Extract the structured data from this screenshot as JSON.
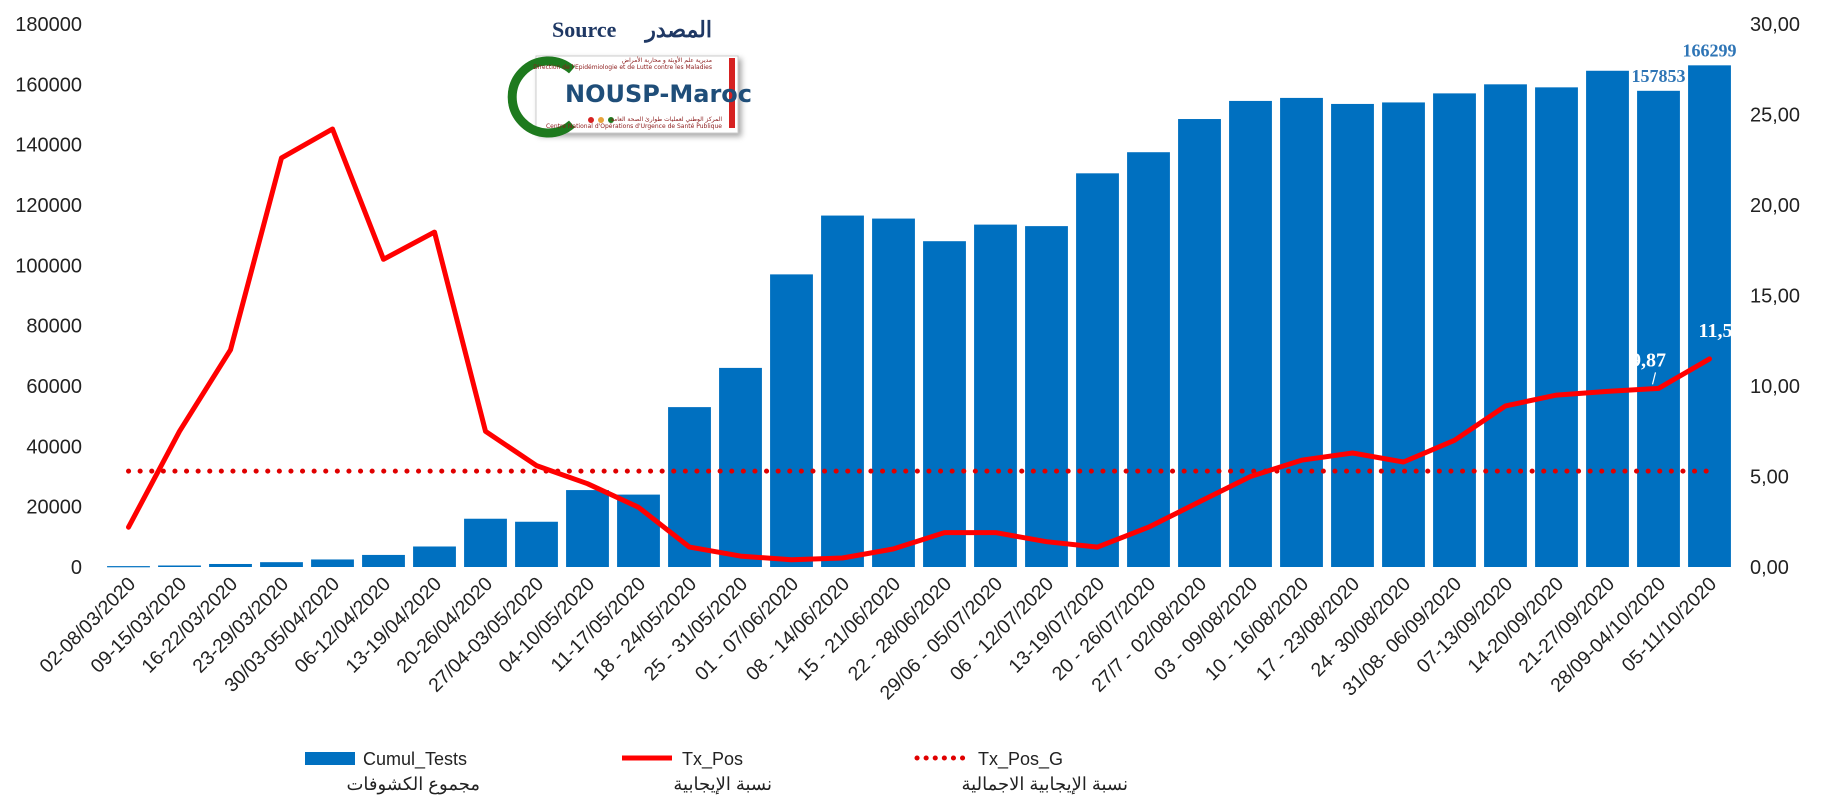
{
  "source": {
    "label_en": "Source",
    "label_ar": "المصدر"
  },
  "logo": {
    "name": "NOUSP-Maroc",
    "line_ar_top": "مديرية علم الأوبئة و محاربة الأمراض",
    "line_fr_top": "Direction de l'Epidémiologie et de Lutte contre les Maladies",
    "line_ar_bottom": "المركز الوطني لعمليات طوارئ الصحة العامة",
    "line_fr_bottom": "Centre National d'Opérations d'Urgence de Santé Publique",
    "colors": {
      "green": "#1e7a1e",
      "red": "#d62222",
      "blue": "#1f4e79"
    }
  },
  "colors": {
    "bars": "#0070c0",
    "line": "#ff0000",
    "dotted": "#e00000"
  },
  "chart_data": {
    "type": "bar+line",
    "categories": [
      "02-08/03/2020",
      "09-15/03/2020",
      "16-22/03/2020",
      "23-29/03/2020",
      "30/03-05/04/2020",
      "06-12/04/2020",
      "13-19/04/2020",
      "20-26/04/2020",
      "27/04-03/05/2020",
      "04-10/05/2020",
      "11-17/05/2020",
      "18 - 24/05/2020",
      "25 - 31/05/2020",
      "01 - 07/06/2020",
      "08 - 14/06/2020",
      "15 - 21/06/2020",
      "22 - 28/06/2020",
      "29/06 - 05/07/2020",
      "06 - 12/07/2020",
      "13-19/07/2020",
      "20 - 26/07/2020",
      "27/7 - 02/08/2020",
      "03 - 09/08/2020",
      "10 - 16/08/2020",
      "17 - 23/08/2020",
      "24- 30/08/2020",
      "31/08- 06/09/2020",
      "07-13/09/2020",
      "14-20/09/2020",
      "21-27/09/2020",
      "28/09-04/10/2020",
      "05-11/10/2020"
    ],
    "series": [
      {
        "name": "Cumul_Tests",
        "name_ar": "مجموع الكشوفات",
        "axis": "left",
        "values": [
          300,
          500,
          1000,
          1600,
          2500,
          4000,
          6800,
          16000,
          15000,
          25500,
          24000,
          53000,
          66000,
          97000,
          116500,
          115500,
          108000,
          113500,
          113000,
          130500,
          137500,
          148500,
          154500,
          155500,
          153500,
          154000,
          157000,
          160000,
          159000,
          164500,
          157853,
          166299
        ]
      },
      {
        "name": "Tx_Pos",
        "name_ar": "نسبة الإيجابية",
        "axis": "right",
        "values": [
          2.2,
          7.5,
          12.0,
          22.6,
          24.2,
          17.0,
          18.5,
          7.5,
          5.6,
          4.6,
          3.3,
          1.1,
          0.6,
          0.4,
          0.5,
          1.0,
          1.9,
          1.9,
          1.4,
          1.1,
          2.2,
          3.6,
          5.0,
          5.9,
          6.3,
          5.8,
          7.0,
          8.9,
          9.5,
          9.7,
          9.87,
          11.5
        ]
      },
      {
        "name": "Tx_Pos_G",
        "name_ar": "نسبة الإيجابية الاجمالية",
        "axis": "right",
        "style": "dotted",
        "values": [
          5.3,
          5.3,
          5.3,
          5.3,
          5.3,
          5.3,
          5.3,
          5.3,
          5.3,
          5.3,
          5.3,
          5.3,
          5.3,
          5.3,
          5.3,
          5.3,
          5.3,
          5.3,
          5.3,
          5.3,
          5.3,
          5.3,
          5.3,
          5.3,
          5.3,
          5.3,
          5.3,
          5.3,
          5.3,
          5.3,
          5.3,
          5.3
        ]
      }
    ],
    "y_left": {
      "lim": [
        0,
        180000
      ],
      "ticks": [
        "0",
        "20000",
        "40000",
        "60000",
        "80000",
        "100000",
        "120000",
        "140000",
        "160000",
        "180000"
      ]
    },
    "y_right": {
      "lim": [
        0,
        30
      ],
      "ticks": [
        "0,00",
        "5,00",
        "10,00",
        "15,00",
        "20,00",
        "25,00",
        "30,00"
      ]
    },
    "data_labels": [
      {
        "series": "Cumul_Tests",
        "index": 30,
        "text": "157853"
      },
      {
        "series": "Cumul_Tests",
        "index": 31,
        "text": "166299"
      },
      {
        "series": "Tx_Pos",
        "index": 30,
        "text": "9,87"
      },
      {
        "series": "Tx_Pos",
        "index": 31,
        "text": "11,5"
      }
    ],
    "legend": {
      "position": "bottom",
      "items": [
        {
          "name": "Cumul_Tests",
          "sub": "مجموع الكشوفات"
        },
        {
          "name": "Tx_Pos",
          "sub": "نسبة الإيجابية"
        },
        {
          "name": "Tx_Pos_G",
          "sub": "نسبة الإيجابية الاجمالية"
        }
      ]
    },
    "grid": false
  }
}
